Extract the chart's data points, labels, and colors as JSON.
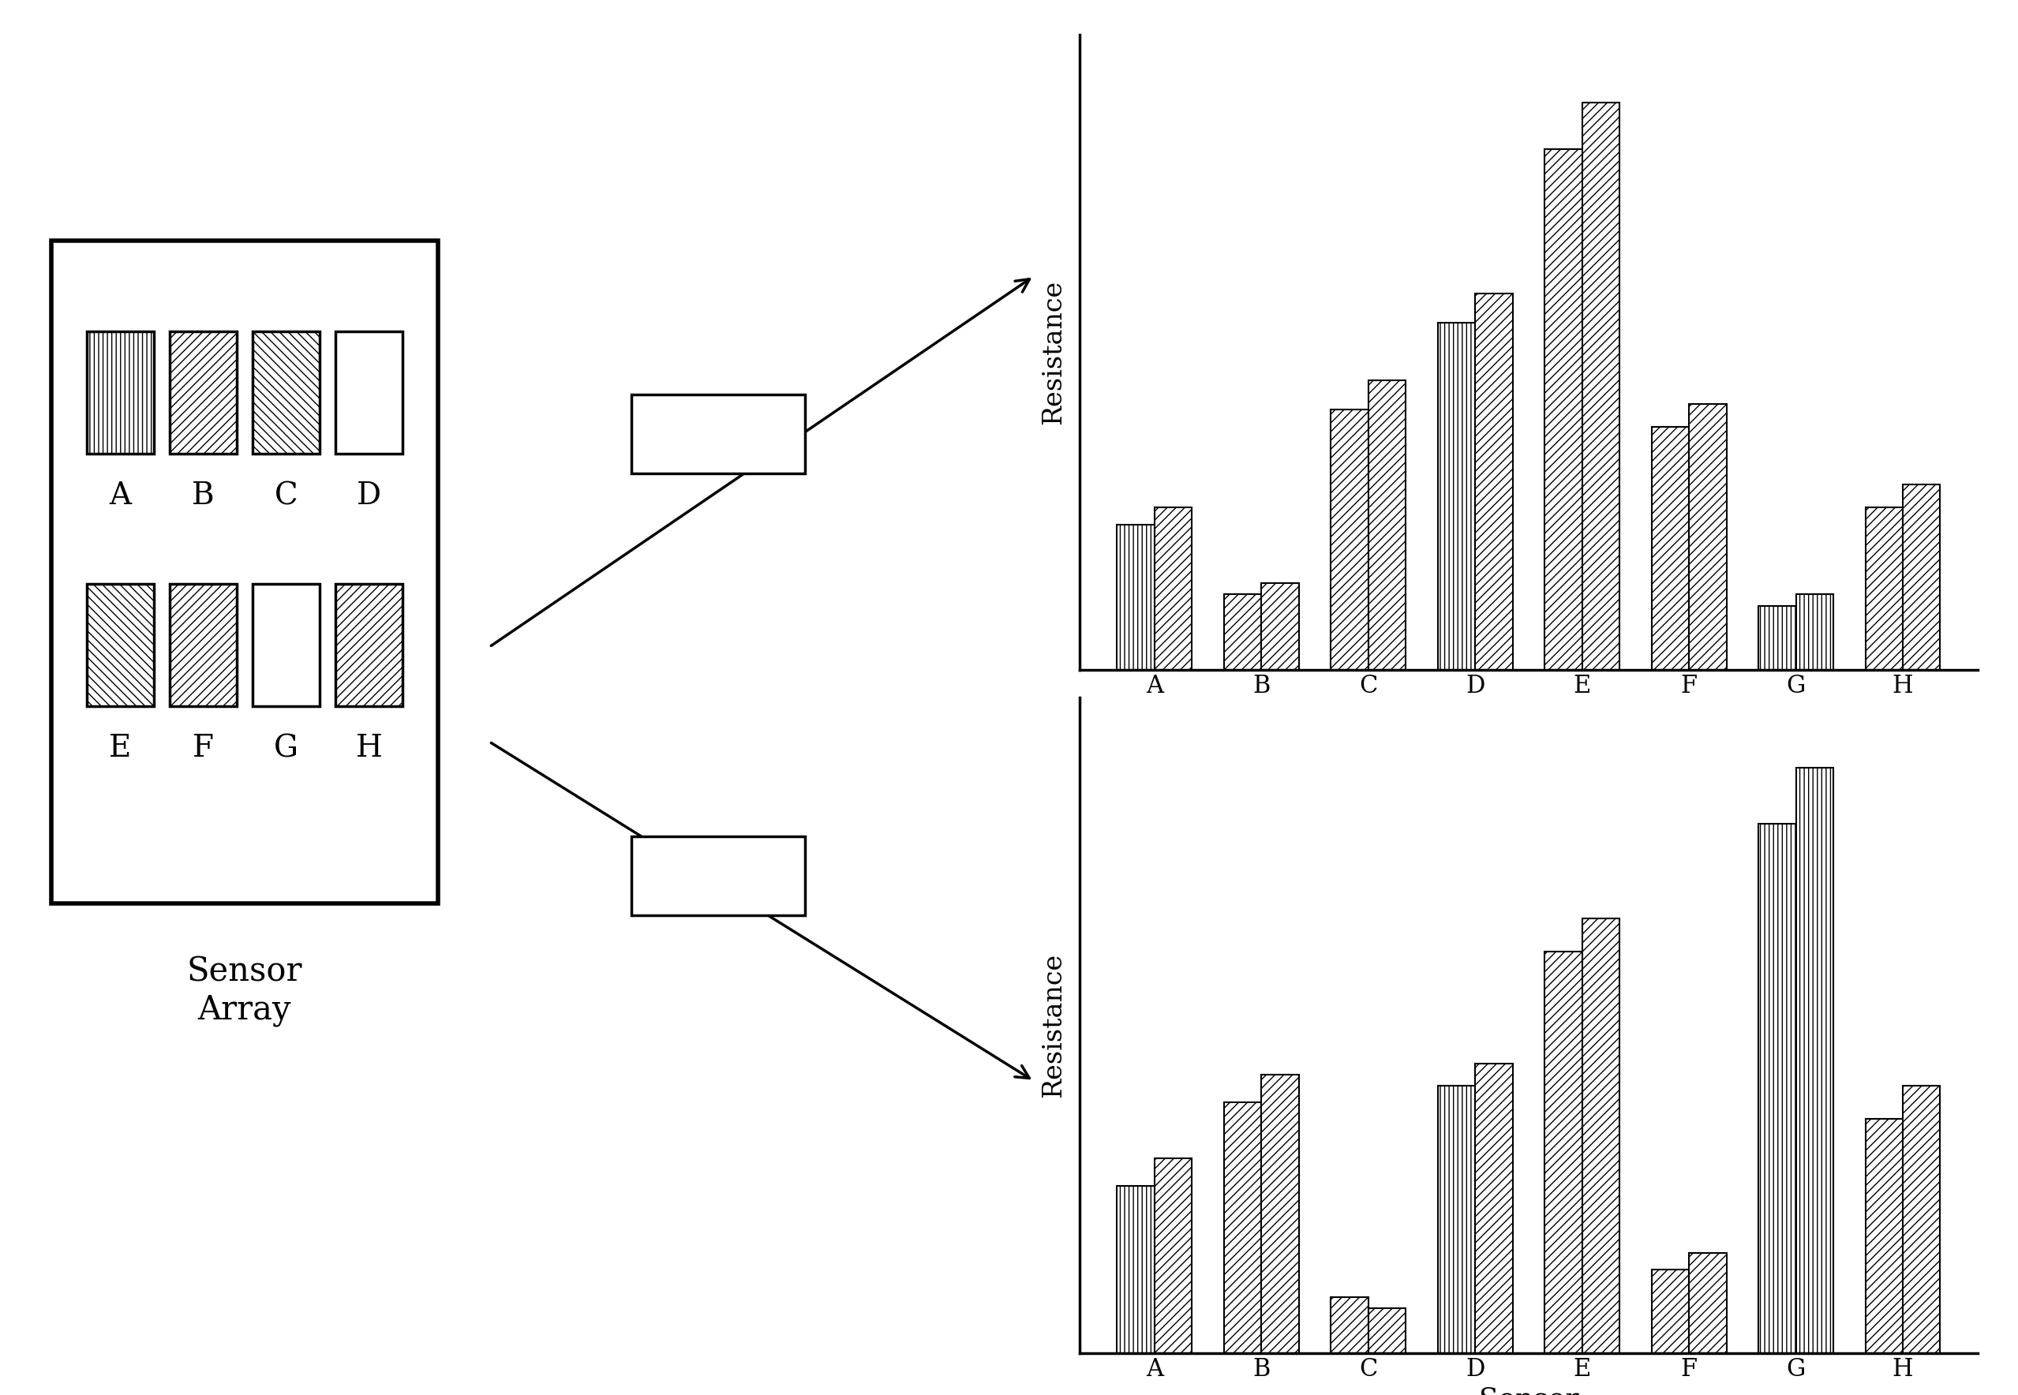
{
  "background_color": "#ffffff",
  "sensor_labels": [
    "A",
    "B",
    "C",
    "D",
    "E",
    "F",
    "G",
    "H"
  ],
  "chart1_bar1_values": [
    3.0,
    4.5,
    1.0,
    4.8,
    7.2,
    1.5,
    9.5,
    4.2
  ],
  "chart1_bar2_values": [
    3.0,
    4.5,
    1.0,
    4.8,
    7.2,
    1.5,
    9.5,
    4.2
  ],
  "chart1_hatch1": [
    "|||",
    "///",
    "///",
    "|||",
    "///",
    "///",
    "|||",
    "///"
  ],
  "chart1_hatch2": [
    "///",
    "///",
    "///",
    "|||",
    "///",
    "///",
    "|||",
    "///"
  ],
  "chart2_bar1_values": [
    2.5,
    1.3,
    4.5,
    6.0,
    9.0,
    4.2,
    1.1,
    2.8
  ],
  "chart2_bar2_values": [
    2.5,
    1.3,
    4.5,
    6.0,
    9.0,
    4.2,
    1.1,
    2.8
  ],
  "chart2_hatch1": [
    "|||",
    "///",
    "///",
    "|||",
    "///",
    "///",
    "|||",
    "///"
  ],
  "chart2_hatch2": [
    "///",
    "///",
    "///",
    "|||",
    "///",
    "///",
    "|||",
    "///"
  ],
  "sensor_hatches_row1": [
    "|||",
    "///",
    "\\\\\\",
    "="
  ],
  "sensor_hatches_row2": [
    "\\\\\\",
    "///",
    "=",
    "///"
  ],
  "sensor_labels_row1": [
    "A",
    "B",
    "C",
    "D"
  ],
  "sensor_labels_row2": [
    "E",
    "F",
    "G",
    "H"
  ]
}
